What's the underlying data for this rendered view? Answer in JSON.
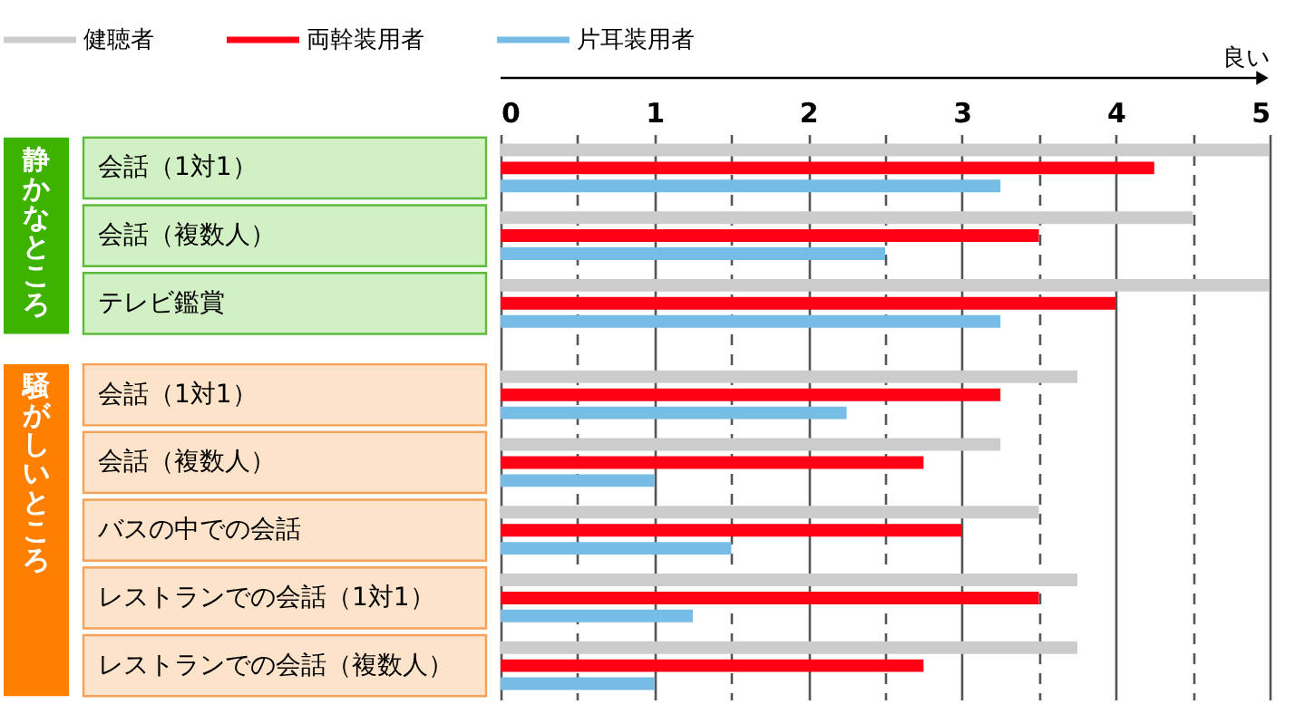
{
  "chart_data": {
    "type": "bar",
    "orientation": "horizontal",
    "categories": [
      "会話（1対1）",
      "会話（複数人）",
      "テレビ鑑賞",
      "会話（1対1）",
      "会話（複数人）",
      "バスの中での会話",
      "レストランでの会話（1対1）",
      "レストランでの会話（複数人）"
    ],
    "series": [
      {
        "name": "健聴者",
        "color": "#cccccc",
        "values": [
          5,
          4.5,
          5,
          3.75,
          3.25,
          3.5,
          3.75,
          3.75
        ]
      },
      {
        "name": "両幹装用者",
        "color": "#ff0015",
        "values": [
          4.25,
          3.5,
          4,
          3.25,
          2.75,
          3,
          3.5,
          2.75
        ]
      },
      {
        "name": "片耳装用者",
        "color": "#75bde6",
        "values": [
          3.25,
          2.5,
          3.25,
          2.25,
          1,
          1.5,
          1.25,
          1
        ]
      }
    ],
    "xlim": [
      0,
      5
    ],
    "xticks": [
      0,
      {
        "value": 0.5,
        "label": null
      },
      1,
      {
        "value": 1.5,
        "label": null
      },
      2,
      {
        "value": 2.5,
        "label": null
      },
      3,
      {
        "value": 3.5,
        "label": null
      },
      4,
      {
        "value": 4.5,
        "label": null
      },
      5
    ],
    "grid": "x",
    "legend": "top",
    "annotations": [
      "静かなところ",
      "騒がしいところ",
      "良い"
    ]
  }
}
